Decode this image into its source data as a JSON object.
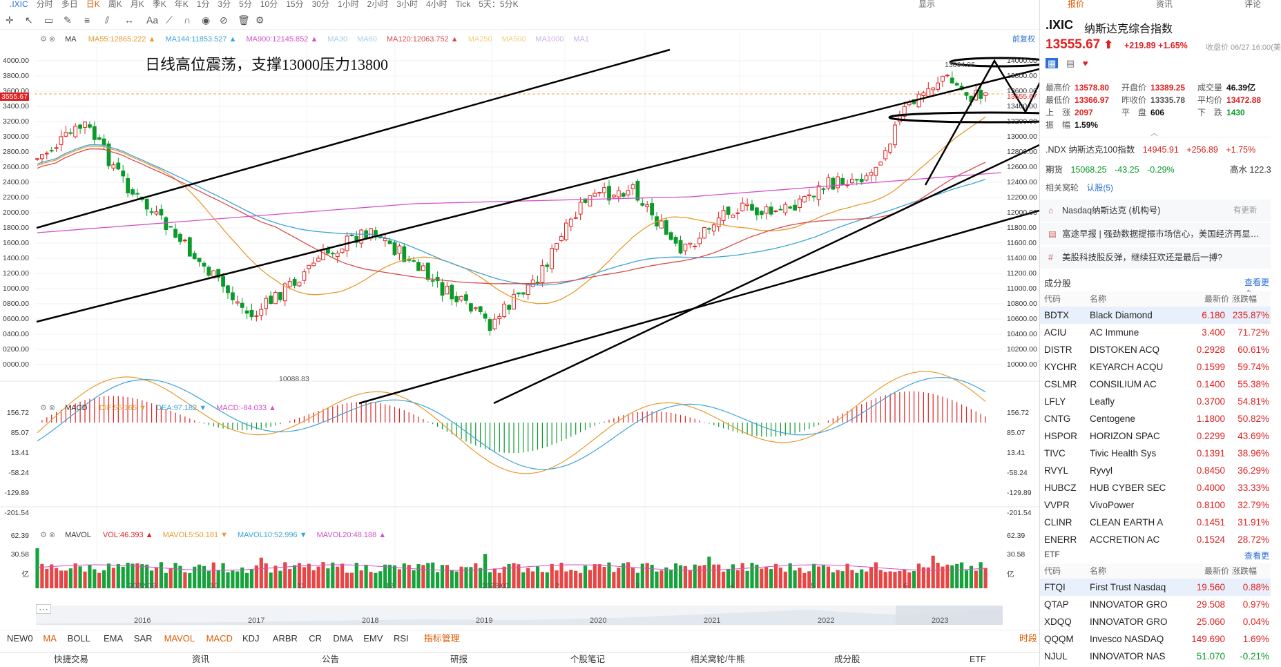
{
  "top_tabs": {
    "symbol": ".IXIC",
    "periods": [
      "分时",
      "多日",
      "日K",
      "周K",
      "月K",
      "季K",
      "年K",
      "1分",
      "3分",
      "5分",
      "10分",
      "15分",
      "30分",
      "1小时",
      "2小时",
      "3小时",
      "4小时",
      "Tick",
      "5天：5分K"
    ],
    "active": "日K",
    "display": "显示"
  },
  "toolbar": {
    "text_tool": "Aa"
  },
  "ma_legend": {
    "label": "MA",
    "items": [
      {
        "name": "MA55",
        "value": "12865.222",
        "color": "#e89a2e",
        "arrow": "▲"
      },
      {
        "name": "MA144",
        "value": "11853.527",
        "color": "#3aa3d8",
        "arrow": "▲"
      },
      {
        "name": "MA900",
        "value": "12145.852",
        "color": "#d24fc9",
        "arrow": "▲"
      },
      {
        "name": "MA30",
        "value": "",
        "color": "#9fd0ef",
        "arrow": ""
      },
      {
        "name": "MA60",
        "value": "",
        "color": "#9fd0ef",
        "arrow": ""
      },
      {
        "name": "MA120",
        "value": "12063.752",
        "color": "#d84a4a",
        "arrow": "▲"
      },
      {
        "name": "MA250",
        "value": "",
        "color": "#f3d07a",
        "arrow": ""
      },
      {
        "name": "MA500",
        "value": "",
        "color": "#f3d07a",
        "arrow": ""
      },
      {
        "name": "MA1000",
        "value": "",
        "color": "#c9b0ef",
        "arrow": ""
      },
      {
        "name": "MA1",
        "value": "",
        "color": "#c9b0ef",
        "arrow": ""
      }
    ],
    "adjust": "前复权"
  },
  "annotation": "日线高位震荡，支撑13000压力13800",
  "price_axis": {
    "left_labels": [
      "4000.00",
      "3800.00",
      "3600.00",
      "3400.00",
      "3200.00",
      "3000.00",
      "2800.00",
      "2600.00",
      "2400.00",
      "2200.00",
      "2000.00",
      "1800.00",
      "1600.00",
      "1400.00",
      "1200.00",
      "1000.00",
      "0800.00",
      "0600.00",
      "0400.00",
      "0200.00",
      "0000.00"
    ],
    "right_labels": [
      "14000.00",
      "13800.00",
      "13600.00",
      "13400.00",
      "13200.00",
      "13000.00",
      "12800.00",
      "12600.00",
      "12400.00",
      "12200.00",
      "12000.00",
      "11800.00",
      "11600.00",
      "11400.00",
      "11200.00",
      "11000.00",
      "10800.00",
      "10600.00",
      "10400.00",
      "10200.00",
      "10000.00"
    ],
    "current_left": "3555.67",
    "current_right": "13555.67",
    "high_label": "13864.06",
    "low_label": "10088.83"
  },
  "macd": {
    "label": "MACD",
    "dif": {
      "name": "DIF",
      "value": "55.165",
      "arrow": "▼",
      "color": "#e89a2e"
    },
    "dea": {
      "name": "DEA",
      "value": "97.182",
      "arrow": "▼",
      "color": "#3aa3d8"
    },
    "macd": {
      "name": "MACD",
      "value": "-84.033",
      "arrow": "▲",
      "color": "#d24fc9"
    },
    "axis": [
      "156.72",
      "85.07",
      "13.41",
      "-58.24",
      "-129.89",
      "-201.54"
    ]
  },
  "mavol": {
    "label": "MAVOL",
    "vol": {
      "name": "VOL",
      "value": "46.393",
      "arrow": "▲",
      "color": "#e02020"
    },
    "mavol5": {
      "name": "MAVOL5",
      "value": "50.181",
      "arrow": "▼",
      "color": "#e89a2e"
    },
    "mavol10": {
      "name": "MAVOL10",
      "value": "52.996",
      "arrow": "▼",
      "color": "#3aa3d8"
    },
    "mavol20": {
      "name": "MAVOL20",
      "value": "48.188",
      "arrow": "▲",
      "color": "#d24fc9"
    },
    "axis": [
      "62.39",
      "30.58",
      "亿"
    ]
  },
  "time_axis": [
    "2022/09",
    "10",
    "11",
    "12",
    "2023/01",
    "2",
    "3",
    "4",
    "5",
    "6"
  ],
  "overview_years": [
    "2016",
    "2017",
    "2018",
    "2019",
    "2020",
    "2021",
    "2022",
    "2023"
  ],
  "indicator_tabs": [
    "NEW0",
    "MA",
    "BOLL",
    "EMA",
    "SAR",
    "MAVOL",
    "MACD",
    "KDJ",
    "ARBR",
    "CR",
    "DMA",
    "EMV",
    "RSI",
    "指标管理"
  ],
  "indicator_active": [
    "MA",
    "MAVOL",
    "MACD",
    "指标管理"
  ],
  "timeshare_label": "时段",
  "bottom_nav": [
    "快捷交易",
    "资讯",
    "公告",
    "研报",
    "个股笔记",
    "相关窝轮/牛熊",
    "成分股",
    "ETF"
  ],
  "right_panel": {
    "tabs": [
      "报价",
      "资讯",
      "评论"
    ],
    "code": ".IXIC",
    "name": "纳斯达克综合指数",
    "price": "13555.67",
    "change": "+219.89",
    "change_pct": "+1.65%",
    "close_info": "收盘价 06/27 16:00(美",
    "stats": [
      {
        "k": "最高价",
        "v": "13578.80",
        "c": "red"
      },
      {
        "k": "开盘价",
        "v": "13389.25",
        "c": "red"
      },
      {
        "k": "成交量",
        "v": "46.39亿",
        "c": "dark"
      },
      {
        "k": "最低价",
        "v": "13366.97",
        "c": "red"
      },
      {
        "k": "昨收价",
        "v": "13335.78",
        "c": "gray"
      },
      {
        "k": "平均价",
        "v": "13472.88",
        "c": "red"
      },
      {
        "k": "上　涨",
        "v": "2097",
        "c": "red"
      },
      {
        "k": "平　盘",
        "v": "606",
        "c": "dark"
      },
      {
        "k": "下　跌",
        "v": "1430",
        "c": "green"
      },
      {
        "k": "振　幅",
        "v": "1.59%",
        "c": "dark"
      }
    ],
    "ndx": {
      "name": ".NDX 纳斯达克100指数",
      "price": "14945.91",
      "change": "+256.89",
      "pct": "+1.75%"
    },
    "futures": {
      "label": "期货",
      "price": "15068.25",
      "change": "-43.25",
      "pct": "-0.29%",
      "extra": "高水 122.3"
    },
    "warrants": {
      "label": "相关窝轮",
      "link": "认股(5)"
    },
    "news": [
      {
        "icon": "⌂",
        "text": "Nasdaq纳斯达克 (机构号)",
        "tag": "有更新"
      },
      {
        "icon": "▤",
        "text": "富途早报 | 强劲数据提振市场信心，美国经济再显…",
        "tag": ""
      },
      {
        "icon": "#",
        "text": "美股科技股反弹，继续狂欢还是最后一搏?",
        "tag": ""
      }
    ],
    "constituents": {
      "title": "成分股",
      "more": "查看更多",
      "headers": [
        "代码",
        "名称",
        "最新价",
        "涨跌幅"
      ],
      "rows": [
        [
          "BDTX",
          "Black Diamond",
          "6.180",
          "235.87%"
        ],
        [
          "ACIU",
          "AC Immune",
          "3.400",
          "71.72%"
        ],
        [
          "DISTR",
          "DISTOKEN ACQ",
          "0.2928",
          "60.61%"
        ],
        [
          "KYCHR",
          "KEYARCH ACQU",
          "0.1599",
          "59.74%"
        ],
        [
          "CSLMR",
          "CONSILIUM AC",
          "0.1400",
          "55.38%"
        ],
        [
          "LFLY",
          "Leafly",
          "0.3700",
          "54.81%"
        ],
        [
          "CNTG",
          "Centogene",
          "1.1800",
          "50.82%"
        ],
        [
          "HSPOR",
          "HORIZON SPAC",
          "0.2299",
          "43.69%"
        ],
        [
          "TIVC",
          "Tivic Health Sys",
          "0.1391",
          "38.96%"
        ],
        [
          "RVYL",
          "Ryvyl",
          "0.8450",
          "36.29%"
        ],
        [
          "HUBCZ",
          "HUB CYBER SEC",
          "0.4000",
          "33.33%"
        ],
        [
          "VVPR",
          "VivoPower",
          "0.8100",
          "32.79%"
        ],
        [
          "CLINR",
          "CLEAN EARTH A",
          "0.1451",
          "31.91%"
        ],
        [
          "ENERR",
          "ACCRETION AC",
          "0.1524",
          "28.72%"
        ]
      ]
    },
    "etf": {
      "title": "ETF",
      "more": "查看更多",
      "headers": [
        "代码",
        "名称",
        "最新价",
        "涨跌幅"
      ],
      "rows": [
        [
          "FTQI",
          "First Trust Nasdaq",
          "19.560",
          "0.88%",
          "red"
        ],
        [
          "QTAP",
          "INNOVATOR GRO",
          "29.508",
          "0.97%",
          "red"
        ],
        [
          "XDQQ",
          "INNOVATOR GRO",
          "25.060",
          "0.04%",
          "red"
        ],
        [
          "QQQM",
          "Invesco NASDAQ",
          "149.690",
          "1.69%",
          "red"
        ],
        [
          "NJUL",
          "INNOVATOR NAS",
          "51.070",
          "-0.21%",
          "green"
        ]
      ]
    }
  }
}
